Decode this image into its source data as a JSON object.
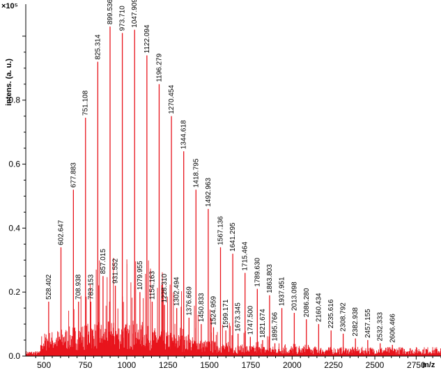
{
  "chart_data": {
    "type": "line",
    "title": "",
    "xlabel": "m/z",
    "ylabel": "intens. (a. u.)",
    "y_multiplier": "×10⁵",
    "xlim": [
      390,
      2900
    ],
    "ylim": [
      0,
      1.1
    ],
    "x_ticks": [
      500,
      750,
      1000,
      1250,
      1500,
      1750,
      2000,
      2250,
      2500,
      2750
    ],
    "y_ticks": [
      0.0,
      0.2,
      0.4,
      0.6,
      0.8
    ],
    "line_color": "#e8141c",
    "grid": false,
    "peaks": [
      {
        "x": 528.402,
        "y": 0.17,
        "label": "528.402"
      },
      {
        "x": 602.647,
        "y": 0.34,
        "label": "602.647"
      },
      {
        "x": 677.883,
        "y": 0.52,
        "label": "677.883"
      },
      {
        "x": 708.938,
        "y": 0.17,
        "label": "708.938"
      },
      {
        "x": 751.108,
        "y": 0.745,
        "label": "751.108"
      },
      {
        "x": 783.153,
        "y": 0.17,
        "label": "783.153"
      },
      {
        "x": 825.314,
        "y": 0.92,
        "label": "825.314"
      },
      {
        "x": 857.015,
        "y": 0.25,
        "label": "857.015"
      },
      {
        "x": 899.536,
        "y": 1.03,
        "label": "899.536"
      },
      {
        "x": 931.552,
        "y": 0.22,
        "label": "931.552"
      },
      {
        "x": 973.71,
        "y": 1.01,
        "label": "973.710"
      },
      {
        "x": 1047.909,
        "y": 1.02,
        "label": "1047.909"
      },
      {
        "x": 1079.955,
        "y": 0.2,
        "label": "1079.955"
      },
      {
        "x": 1122.094,
        "y": 0.94,
        "label": "1122.094"
      },
      {
        "x": 1154.163,
        "y": 0.17,
        "label": "1154.163"
      },
      {
        "x": 1196.279,
        "y": 0.85,
        "label": "1196.279"
      },
      {
        "x": 1228.31,
        "y": 0.16,
        "label": "1228.310"
      },
      {
        "x": 1270.454,
        "y": 0.75,
        "label": "1270.454"
      },
      {
        "x": 1302.494,
        "y": 0.15,
        "label": "1302.494"
      },
      {
        "x": 1344.618,
        "y": 0.64,
        "label": "1344.618"
      },
      {
        "x": 1376.669,
        "y": 0.12,
        "label": "1376.669"
      },
      {
        "x": 1418.795,
        "y": 0.52,
        "label": "1418.795"
      },
      {
        "x": 1450.833,
        "y": 0.1,
        "label": "1450.833"
      },
      {
        "x": 1492.963,
        "y": 0.46,
        "label": "1492.963"
      },
      {
        "x": 1524.959,
        "y": 0.09,
        "label": "1524.959"
      },
      {
        "x": 1567.136,
        "y": 0.34,
        "label": "1567.136"
      },
      {
        "x": 1599.171,
        "y": 0.08,
        "label": "1599.171"
      },
      {
        "x": 1641.295,
        "y": 0.32,
        "label": "1641.295"
      },
      {
        "x": 1673.345,
        "y": 0.07,
        "label": "1673.345"
      },
      {
        "x": 1715.464,
        "y": 0.26,
        "label": "1715.464"
      },
      {
        "x": 1747.5,
        "y": 0.06,
        "label": "1747.500"
      },
      {
        "x": 1789.63,
        "y": 0.21,
        "label": "1789.630"
      },
      {
        "x": 1821.674,
        "y": 0.05,
        "label": "1821.674"
      },
      {
        "x": 1863.803,
        "y": 0.19,
        "label": "1863.803"
      },
      {
        "x": 1895.766,
        "y": 0.04,
        "label": "1895.766"
      },
      {
        "x": 1937.951,
        "y": 0.15,
        "label": "1937.951"
      },
      {
        "x": 2013.098,
        "y": 0.135,
        "label": "2013.098"
      },
      {
        "x": 2086.28,
        "y": 0.115,
        "label": "2086.280"
      },
      {
        "x": 2160.434,
        "y": 0.1,
        "label": "2160.434"
      },
      {
        "x": 2235.616,
        "y": 0.08,
        "label": "2235.616"
      },
      {
        "x": 2308.792,
        "y": 0.07,
        "label": "2308.792"
      },
      {
        "x": 2382.938,
        "y": 0.055,
        "label": "2382.938"
      },
      {
        "x": 2457.155,
        "y": 0.05,
        "label": "2457.155"
      },
      {
        "x": 2532.333,
        "y": 0.04,
        "label": "2532.333"
      },
      {
        "x": 2606.466,
        "y": 0.035,
        "label": "2606.466"
      }
    ]
  }
}
